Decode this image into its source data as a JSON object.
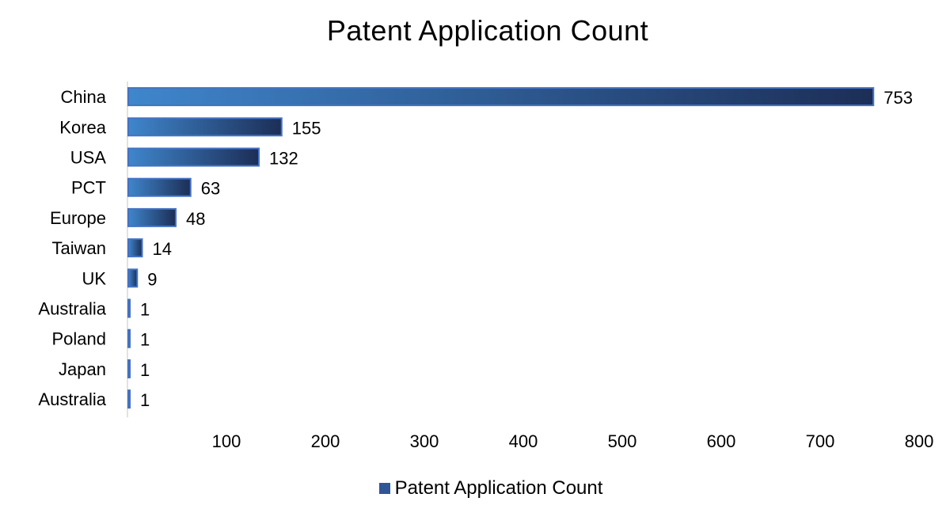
{
  "chart_data": {
    "type": "bar",
    "orientation": "horizontal",
    "title": "Patent Application Count",
    "categories": [
      "China",
      "Korea",
      "USA",
      "PCT",
      "Europe",
      "Taiwan",
      "UK",
      "Australia",
      "Poland",
      "Japan",
      "Australia"
    ],
    "series": [
      {
        "name": "Patent Application Count",
        "values": [
          753,
          155,
          132,
          63,
          48,
          14,
          9,
          1,
          1,
          1,
          1
        ]
      }
    ],
    "xlim": [
      0,
      800
    ],
    "xticks": [
      100,
      200,
      300,
      400,
      500,
      600,
      700,
      800
    ],
    "grid": false,
    "data_labels": true,
    "legend_position": "bottom",
    "colors": {
      "bar_start": "#3f86cc",
      "bar_end": "#1c2e57",
      "bar_border": "#4472c4",
      "legend": "#2f5597"
    }
  }
}
